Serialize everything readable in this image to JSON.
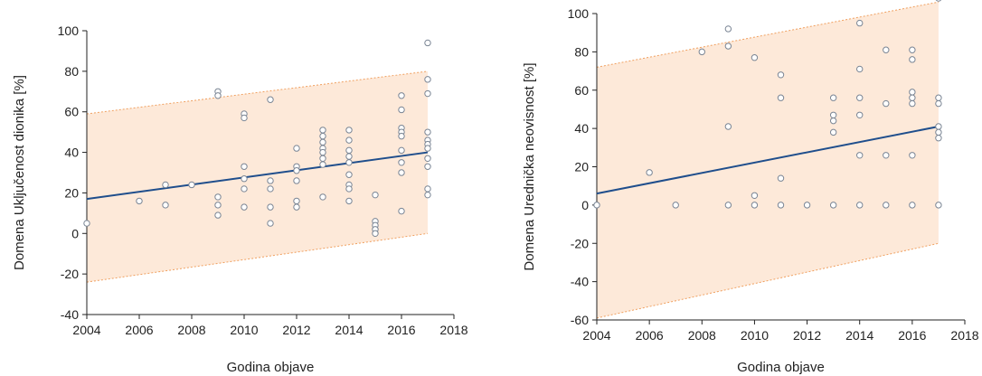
{
  "chart_data": [
    {
      "type": "scatter",
      "xlabel": "Godina objave",
      "ylabel": "Domena Uključenost dionika [%]",
      "xlim": [
        2004,
        2018
      ],
      "ylim": [
        -40,
        100
      ],
      "x_ticks": [
        2004,
        2006,
        2008,
        2010,
        2012,
        2014,
        2016,
        2018
      ],
      "y_ticks": [
        -40,
        -20,
        0,
        20,
        40,
        60,
        80,
        100
      ],
      "grid": false,
      "colors": {
        "points": "#7a8594",
        "trend": "#1f4e8c",
        "band_fill": "#fde9d9",
        "band_edge": "#f0a060"
      },
      "trend_line": {
        "x": [
          2004,
          2017
        ],
        "y": [
          17,
          40
        ]
      },
      "prediction_band": {
        "x": [
          2004,
          2017
        ],
        "upper": [
          59,
          80
        ],
        "lower": [
          -24,
          0
        ]
      },
      "points": [
        {
          "x": 2004,
          "y": 5
        },
        {
          "x": 2006,
          "y": 16
        },
        {
          "x": 2007,
          "y": 24
        },
        {
          "x": 2007,
          "y": 14
        },
        {
          "x": 2008,
          "y": 24
        },
        {
          "x": 2009,
          "y": 70
        },
        {
          "x": 2009,
          "y": 68
        },
        {
          "x": 2009,
          "y": 18
        },
        {
          "x": 2009,
          "y": 14
        },
        {
          "x": 2009,
          "y": 9
        },
        {
          "x": 2010,
          "y": 59
        },
        {
          "x": 2010,
          "y": 57
        },
        {
          "x": 2010,
          "y": 33
        },
        {
          "x": 2010,
          "y": 27
        },
        {
          "x": 2010,
          "y": 22
        },
        {
          "x": 2010,
          "y": 13
        },
        {
          "x": 2011,
          "y": 66
        },
        {
          "x": 2011,
          "y": 26
        },
        {
          "x": 2011,
          "y": 22
        },
        {
          "x": 2011,
          "y": 13
        },
        {
          "x": 2011,
          "y": 5
        },
        {
          "x": 2012,
          "y": 42
        },
        {
          "x": 2012,
          "y": 33
        },
        {
          "x": 2012,
          "y": 31
        },
        {
          "x": 2012,
          "y": 26
        },
        {
          "x": 2012,
          "y": 16
        },
        {
          "x": 2012,
          "y": 13
        },
        {
          "x": 2013,
          "y": 51
        },
        {
          "x": 2013,
          "y": 48
        },
        {
          "x": 2013,
          "y": 45
        },
        {
          "x": 2013,
          "y": 42
        },
        {
          "x": 2013,
          "y": 40
        },
        {
          "x": 2013,
          "y": 37
        },
        {
          "x": 2013,
          "y": 34
        },
        {
          "x": 2013,
          "y": 18
        },
        {
          "x": 2014,
          "y": 51
        },
        {
          "x": 2014,
          "y": 46
        },
        {
          "x": 2014,
          "y": 41
        },
        {
          "x": 2014,
          "y": 38
        },
        {
          "x": 2014,
          "y": 35
        },
        {
          "x": 2014,
          "y": 29
        },
        {
          "x": 2014,
          "y": 24
        },
        {
          "x": 2014,
          "y": 22
        },
        {
          "x": 2014,
          "y": 16
        },
        {
          "x": 2015,
          "y": 19
        },
        {
          "x": 2015,
          "y": 6
        },
        {
          "x": 2015,
          "y": 4
        },
        {
          "x": 2015,
          "y": 2
        },
        {
          "x": 2015,
          "y": 0
        },
        {
          "x": 2016,
          "y": 68
        },
        {
          "x": 2016,
          "y": 61
        },
        {
          "x": 2016,
          "y": 52
        },
        {
          "x": 2016,
          "y": 50
        },
        {
          "x": 2016,
          "y": 48
        },
        {
          "x": 2016,
          "y": 41
        },
        {
          "x": 2016,
          "y": 35
        },
        {
          "x": 2016,
          "y": 30
        },
        {
          "x": 2016,
          "y": 11
        },
        {
          "x": 2017,
          "y": 94
        },
        {
          "x": 2017,
          "y": 76
        },
        {
          "x": 2017,
          "y": 69
        },
        {
          "x": 2017,
          "y": 50
        },
        {
          "x": 2017,
          "y": 46
        },
        {
          "x": 2017,
          "y": 44
        },
        {
          "x": 2017,
          "y": 42
        },
        {
          "x": 2017,
          "y": 37
        },
        {
          "x": 2017,
          "y": 33
        },
        {
          "x": 2017,
          "y": 22
        },
        {
          "x": 2017,
          "y": 19
        }
      ]
    },
    {
      "type": "scatter",
      "xlabel": "Godina objave",
      "ylabel": "Domena Urednička neovisnost [%]",
      "xlim": [
        2004,
        2018
      ],
      "ylim": [
        -60,
        100
      ],
      "x_ticks": [
        2004,
        2006,
        2008,
        2010,
        2012,
        2014,
        2016,
        2018
      ],
      "y_ticks": [
        -60,
        -40,
        -20,
        0,
        20,
        40,
        60,
        80,
        100
      ],
      "grid": false,
      "colors": {
        "points": "#7a8594",
        "trend": "#1f4e8c",
        "band_fill": "#fde9d9",
        "band_edge": "#f0a060"
      },
      "trend_line": {
        "x": [
          2004,
          2017
        ],
        "y": [
          6,
          41
        ]
      },
      "prediction_band": {
        "x": [
          2004,
          2017
        ],
        "upper": [
          72,
          106
        ],
        "lower": [
          -59,
          -20
        ]
      },
      "points": [
        {
          "x": 2004,
          "y": 0
        },
        {
          "x": 2006,
          "y": 17
        },
        {
          "x": 2007,
          "y": 0
        },
        {
          "x": 2008,
          "y": 80
        },
        {
          "x": 2009,
          "y": 92
        },
        {
          "x": 2009,
          "y": 83
        },
        {
          "x": 2009,
          "y": 41
        },
        {
          "x": 2009,
          "y": 0
        },
        {
          "x": 2010,
          "y": 77
        },
        {
          "x": 2010,
          "y": 5
        },
        {
          "x": 2010,
          "y": 0
        },
        {
          "x": 2011,
          "y": 68
        },
        {
          "x": 2011,
          "y": 56
        },
        {
          "x": 2011,
          "y": 14
        },
        {
          "x": 2011,
          "y": 0
        },
        {
          "x": 2012,
          "y": 0
        },
        {
          "x": 2013,
          "y": 56
        },
        {
          "x": 2013,
          "y": 47
        },
        {
          "x": 2013,
          "y": 44
        },
        {
          "x": 2013,
          "y": 38
        },
        {
          "x": 2013,
          "y": 0
        },
        {
          "x": 2014,
          "y": 95
        },
        {
          "x": 2014,
          "y": 71
        },
        {
          "x": 2014,
          "y": 56
        },
        {
          "x": 2014,
          "y": 47
        },
        {
          "x": 2014,
          "y": 26
        },
        {
          "x": 2014,
          "y": 0
        },
        {
          "x": 2015,
          "y": 81
        },
        {
          "x": 2015,
          "y": 53
        },
        {
          "x": 2015,
          "y": 26
        },
        {
          "x": 2015,
          "y": 0
        },
        {
          "x": 2016,
          "y": 81
        },
        {
          "x": 2016,
          "y": 76
        },
        {
          "x": 2016,
          "y": 59
        },
        {
          "x": 2016,
          "y": 56
        },
        {
          "x": 2016,
          "y": 53
        },
        {
          "x": 2016,
          "y": 26
        },
        {
          "x": 2016,
          "y": 0
        },
        {
          "x": 2017,
          "y": 108
        },
        {
          "x": 2017,
          "y": 56
        },
        {
          "x": 2017,
          "y": 53
        },
        {
          "x": 2017,
          "y": 41
        },
        {
          "x": 2017,
          "y": 38
        },
        {
          "x": 2017,
          "y": 35
        },
        {
          "x": 2017,
          "y": 0
        }
      ]
    }
  ]
}
